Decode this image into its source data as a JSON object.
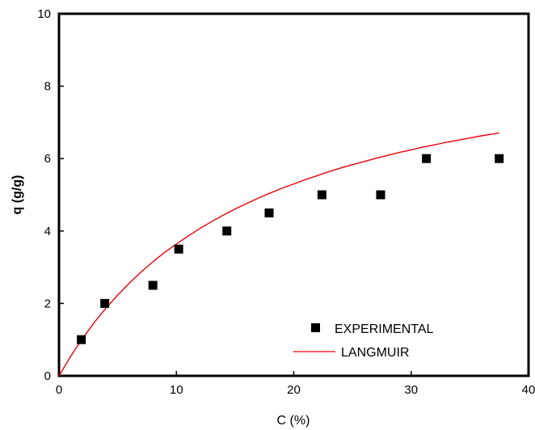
{
  "chart_data": {
    "type": "scatter",
    "xlabel": "C (%)",
    "ylabel": "q (g/g)",
    "xlim": [
      0,
      40
    ],
    "ylim": [
      0,
      10
    ],
    "x_ticks": [
      0,
      10,
      20,
      30,
      40
    ],
    "y_ticks": [
      0,
      2,
      4,
      6,
      8,
      10
    ],
    "grid": false,
    "legend_position": "bottom-right",
    "series": [
      {
        "name": "EXPERIMENTAL",
        "kind": "scatter",
        "marker": "square",
        "color": "#000000",
        "x": [
          1.9,
          3.9,
          8.0,
          10.2,
          14.3,
          17.9,
          22.4,
          27.4,
          31.3,
          37.5
        ],
        "y": [
          1.0,
          2.0,
          2.5,
          3.5,
          4.0,
          4.5,
          5.0,
          5.0,
          6.0,
          6.0
        ]
      },
      {
        "name": "LANGMUIR",
        "kind": "line",
        "color": "#e8000b",
        "x": [
          0,
          1,
          2,
          3,
          4,
          5,
          6,
          7,
          8,
          9,
          10,
          11,
          12,
          13,
          14,
          15,
          16,
          17,
          18,
          19,
          20,
          21,
          22,
          23,
          24,
          25,
          26,
          27,
          28,
          29,
          30,
          31,
          32,
          33,
          34,
          35,
          36,
          37,
          37.5
        ],
        "y": [
          0,
          0.54,
          1.03,
          1.47,
          1.87,
          2.23,
          2.56,
          2.87,
          3.15,
          3.41,
          3.64,
          3.86,
          4.07,
          4.26,
          4.44,
          4.61,
          4.76,
          4.91,
          5.05,
          5.18,
          5.3,
          5.42,
          5.53,
          5.64,
          5.74,
          5.83,
          5.92,
          6.01,
          6.09,
          6.17,
          6.24,
          6.32,
          6.38,
          6.45,
          6.51,
          6.57,
          6.63,
          6.68,
          6.71
        ]
      }
    ]
  }
}
